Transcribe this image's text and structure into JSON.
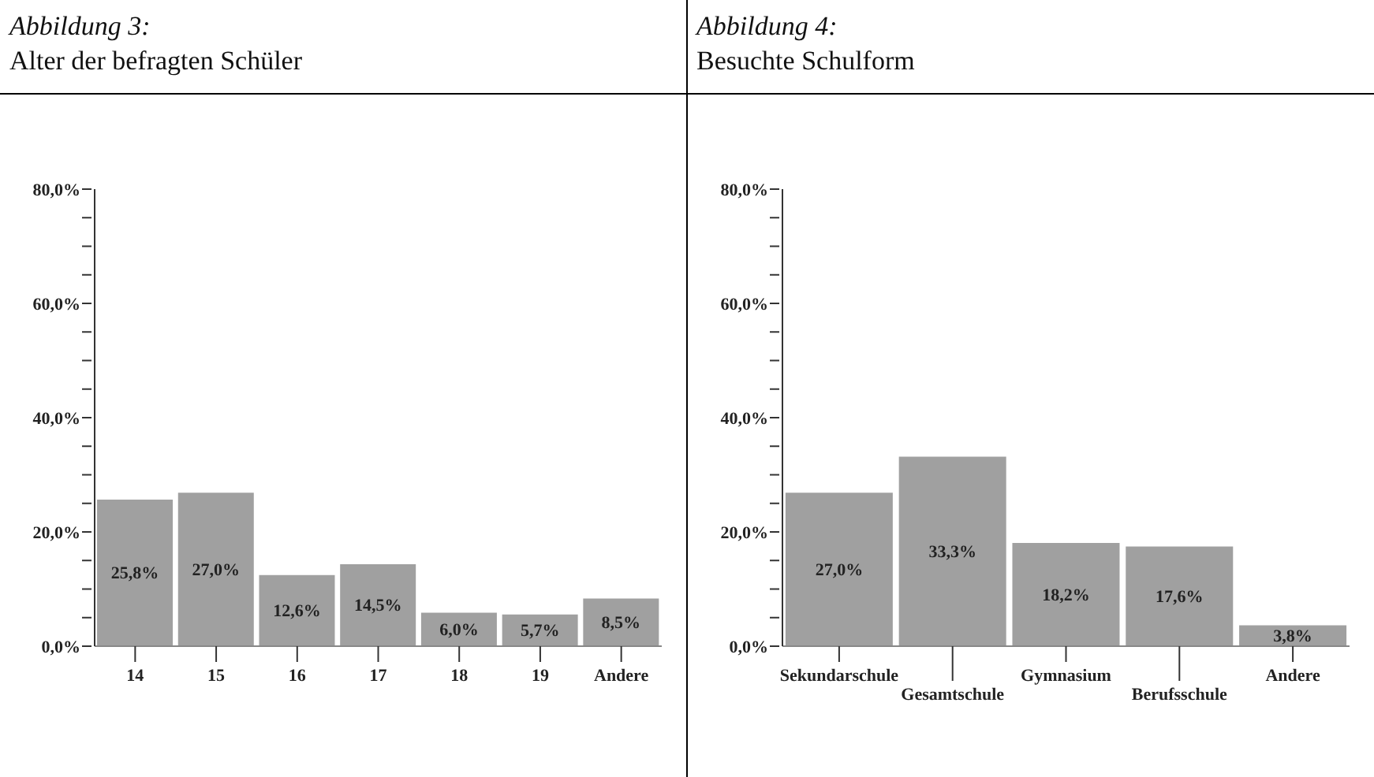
{
  "chart_data": [
    {
      "type": "bar",
      "title": "Abbildung 3:",
      "subtitle": "Alter der befragten Schüler",
      "categories": [
        "14",
        "15",
        "16",
        "17",
        "18",
        "19",
        "Andere"
      ],
      "values": [
        25.8,
        27.0,
        12.6,
        14.5,
        6.0,
        5.7,
        8.5
      ],
      "value_labels": [
        "25,8%",
        "27,0%",
        "12,6%",
        "14,5%",
        "6,0%",
        "5,7%",
        "8,5%"
      ],
      "color": "#a0a0a0",
      "ylim": [
        0,
        80
      ],
      "yticks": [
        {
          "value": 0,
          "label": "0,0%"
        },
        {
          "value": 5,
          "label": null
        },
        {
          "value": 10,
          "label": null
        },
        {
          "value": 15,
          "label": null
        },
        {
          "value": 20,
          "label": "20,0%"
        },
        {
          "value": 25,
          "label": null
        },
        {
          "value": 30,
          "label": null
        },
        {
          "value": 35,
          "label": null
        },
        {
          "value": 40,
          "label": "40,0%"
        },
        {
          "value": 45,
          "label": null
        },
        {
          "value": 50,
          "label": null
        },
        {
          "value": 55,
          "label": null
        },
        {
          "value": 60,
          "label": "60,0%"
        },
        {
          "value": 65,
          "label": null
        },
        {
          "value": 70,
          "label": null
        },
        {
          "value": 75,
          "label": null
        },
        {
          "value": 80,
          "label": "80,0%"
        }
      ],
      "grid": false,
      "legend": false
    },
    {
      "type": "bar",
      "title": "Abbildung 4:",
      "subtitle": "Besuchte Schulform",
      "categories": [
        "Sekundarschule",
        "Gesamtschule",
        "Gymnasium",
        "Berufsschule",
        "Andere"
      ],
      "values": [
        27.0,
        33.3,
        18.2,
        17.6,
        3.8
      ],
      "value_labels": [
        "27,0%",
        "33,3%",
        "18,2%",
        "17,6%",
        "3,8%"
      ],
      "color": "#a0a0a0",
      "ylim": [
        0,
        80
      ],
      "yticks": [
        {
          "value": 0,
          "label": "0,0%"
        },
        {
          "value": 5,
          "label": null
        },
        {
          "value": 10,
          "label": null
        },
        {
          "value": 15,
          "label": null
        },
        {
          "value": 20,
          "label": "20,0%"
        },
        {
          "value": 25,
          "label": null
        },
        {
          "value": 30,
          "label": null
        },
        {
          "value": 35,
          "label": null
        },
        {
          "value": 40,
          "label": "40,0%"
        },
        {
          "value": 45,
          "label": null
        },
        {
          "value": 50,
          "label": null
        },
        {
          "value": 55,
          "label": null
        },
        {
          "value": 60,
          "label": "60,0%"
        },
        {
          "value": 65,
          "label": null
        },
        {
          "value": 70,
          "label": null
        },
        {
          "value": 75,
          "label": null
        },
        {
          "value": 80,
          "label": "80,0%"
        }
      ],
      "grid": false,
      "legend": false
    }
  ]
}
